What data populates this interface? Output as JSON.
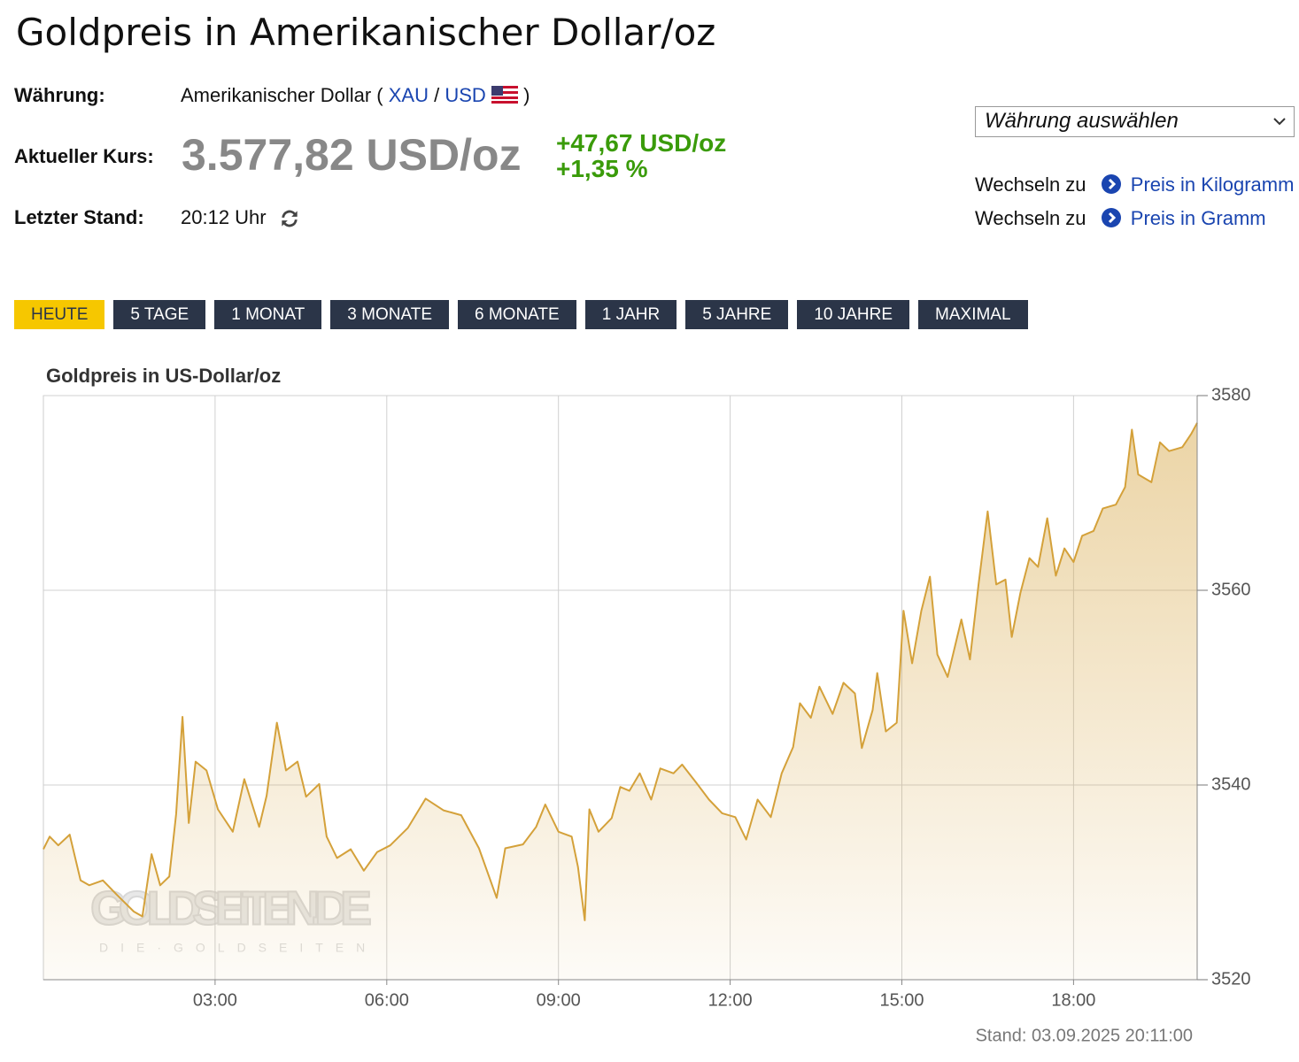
{
  "header": {
    "title": "Goldpreis in Amerikanischer Dollar/oz"
  },
  "info": {
    "currency_label": "Währung:",
    "currency_name": "Amerikanischer Dollar (",
    "currency_from": "XAU",
    "currency_sep": "/",
    "currency_to": "USD",
    "currency_close": ")",
    "price_label": "Aktueller Kurs:",
    "price": "3.577,82 USD/oz",
    "change_abs": "+47,67 USD/oz",
    "change_pct": "+1,35 %",
    "updated_label": "Letzter Stand:",
    "updated": "20:12 Uhr"
  },
  "select": {
    "placeholder": "Währung auswählen"
  },
  "links": [
    {
      "prefix": "Wechseln zu",
      "text": "Preis in Kilogramm"
    },
    {
      "prefix": "Wechseln zu",
      "text": "Preis in Gramm"
    }
  ],
  "tabs": [
    "HEUTE",
    "5 TAGE",
    "1 MONAT",
    "3 MONATE",
    "6 MONATE",
    "1 JAHR",
    "5 JAHRE",
    "10 JAHRE",
    "MAXIMAL"
  ],
  "chart_data": {
    "type": "line",
    "title": "Goldpreis in US-Dollar/oz",
    "note": "Stand: 03.09.2025 20:11:00",
    "watermark": "GOLDSEITEN.DE",
    "watermark_subtitle": "DIE·GOLDSEITEN",
    "color": "#d4a13a",
    "grid": true,
    "area": true,
    "xlim": [
      0,
      20.16
    ],
    "ylim": [
      3520,
      3580
    ],
    "xticks": [
      {
        "value": 3,
        "label": "03:00"
      },
      {
        "value": 6,
        "label": "06:00"
      },
      {
        "value": 9,
        "label": "09:00"
      },
      {
        "value": 12,
        "label": "12:00"
      },
      {
        "value": 15,
        "label": "15:00"
      },
      {
        "value": 18,
        "label": "18:00"
      }
    ],
    "yticks": [
      3520,
      3540,
      3560,
      3580
    ],
    "x": [
      0.0,
      0.11,
      0.26,
      0.46,
      0.65,
      0.8,
      1.04,
      1.27,
      1.58,
      1.73,
      1.89,
      2.04,
      2.2,
      2.32,
      2.43,
      2.54,
      2.66,
      2.85,
      3.05,
      3.31,
      3.51,
      3.77,
      3.9,
      4.08,
      4.24,
      4.44,
      4.59,
      4.82,
      4.95,
      5.13,
      5.37,
      5.6,
      5.83,
      6.06,
      6.37,
      6.68,
      6.99,
      7.3,
      7.61,
      7.92,
      8.07,
      8.38,
      8.61,
      8.77,
      9.0,
      9.23,
      9.34,
      9.46,
      9.54,
      9.7,
      9.93,
      10.08,
      10.24,
      10.42,
      10.62,
      10.78,
      11.01,
      11.16,
      11.4,
      11.63,
      11.86,
      12.09,
      12.28,
      12.48,
      12.71,
      12.9,
      13.1,
      13.22,
      13.41,
      13.56,
      13.79,
      13.98,
      14.18,
      14.3,
      14.49,
      14.57,
      14.72,
      14.91,
      15.03,
      15.18,
      15.34,
      15.49,
      15.62,
      15.8,
      16.04,
      16.19,
      16.34,
      16.5,
      16.65,
      16.81,
      16.92,
      17.07,
      17.23,
      17.38,
      17.54,
      17.69,
      17.84,
      18.0,
      18.15,
      18.35,
      18.51,
      18.74,
      18.9,
      19.02,
      19.13,
      19.36,
      19.51,
      19.67,
      19.9,
      20.06,
      20.16
    ],
    "values": [
      3533.4,
      3534.7,
      3533.8,
      3534.9,
      3530.2,
      3529.7,
      3530.2,
      3528.8,
      3527.0,
      3526.5,
      3532.9,
      3529.7,
      3530.6,
      3537.0,
      3547.0,
      3536.1,
      3542.4,
      3541.5,
      3537.5,
      3535.2,
      3540.6,
      3535.7,
      3538.9,
      3546.4,
      3541.5,
      3542.4,
      3538.8,
      3540.1,
      3534.7,
      3532.5,
      3533.4,
      3531.2,
      3533.1,
      3533.8,
      3535.6,
      3538.6,
      3537.4,
      3536.9,
      3533.5,
      3528.4,
      3533.5,
      3533.9,
      3535.7,
      3538.0,
      3535.2,
      3534.7,
      3531.6,
      3526.1,
      3537.5,
      3535.2,
      3536.6,
      3539.8,
      3539.4,
      3541.2,
      3538.5,
      3541.7,
      3541.2,
      3542.1,
      3540.3,
      3538.5,
      3537.1,
      3536.7,
      3534.4,
      3538.5,
      3536.7,
      3541.2,
      3543.9,
      3548.4,
      3546.9,
      3550.1,
      3547.3,
      3550.5,
      3549.4,
      3543.8,
      3547.7,
      3551.5,
      3545.5,
      3546.4,
      3557.9,
      3552.5,
      3557.9,
      3561.4,
      3553.4,
      3551.1,
      3557.0,
      3552.9,
      3560.6,
      3568.1,
      3560.6,
      3561.1,
      3555.2,
      3559.7,
      3563.3,
      3562.4,
      3567.4,
      3561.5,
      3564.3,
      3562.9,
      3565.6,
      3566.1,
      3568.4,
      3568.8,
      3570.6,
      3576.5,
      3571.9,
      3571.1,
      3575.2,
      3574.3,
      3574.7,
      3576.1,
      3577.2
    ]
  }
}
